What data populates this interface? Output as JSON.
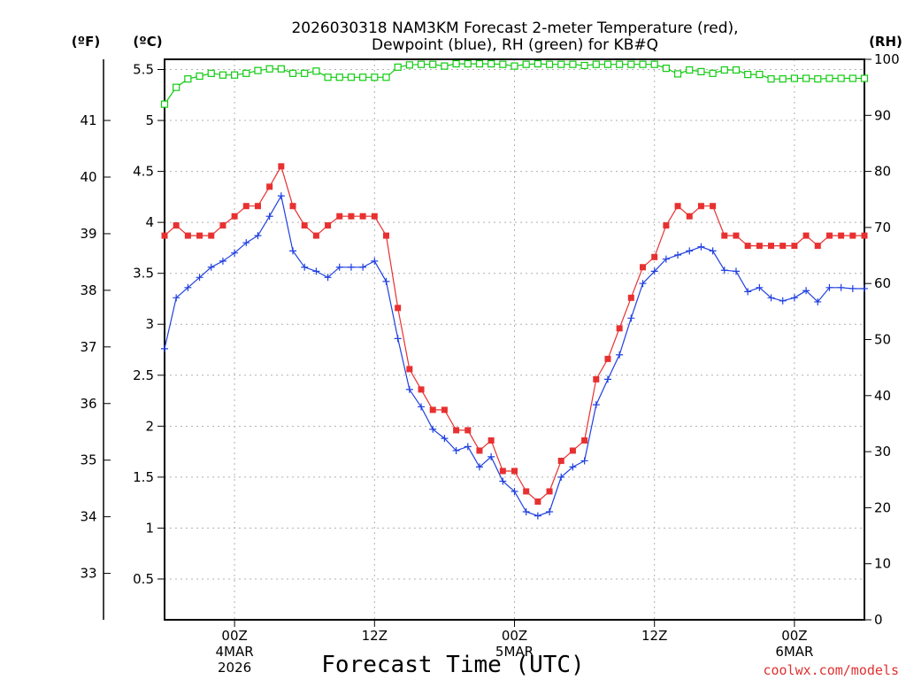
{
  "title_line1": "2026030318 NAM3KM Forecast 2-meter Temperature (red),",
  "title_line2": "Dewpoint (blue), RH (green) for KB#Q",
  "units": {
    "fahrenheit": "(ºF)",
    "celsius": "(ºC)",
    "rh": "(RH)"
  },
  "credit": "coolwx.com/models",
  "colors": {
    "temperature": "#e83030",
    "dewpoint": "#2040e0",
    "rh": "#10cc10",
    "grid": "#b0b0b0",
    "axis": "#000000"
  },
  "chart_data": {
    "type": "line",
    "title": "2026030318 NAM3KM Forecast 2-meter Temperature (red), Dewpoint (blue), RH (green) for KB#Q",
    "xlabel": "Forecast Time (UTC)",
    "x_unit": "forecast hour",
    "xlim": [
      0,
      60
    ],
    "x": [
      0,
      1,
      2,
      3,
      4,
      5,
      6,
      7,
      8,
      9,
      10,
      11,
      12,
      13,
      14,
      15,
      16,
      17,
      18,
      19,
      20,
      21,
      22,
      23,
      24,
      25,
      26,
      27,
      28,
      29,
      30,
      31,
      32,
      33,
      34,
      35,
      36,
      37,
      38,
      39,
      40,
      41,
      42,
      43,
      44,
      45,
      46,
      47,
      48,
      49,
      50,
      51,
      52,
      53,
      54,
      55,
      56,
      57,
      58,
      59,
      60
    ],
    "x_ticks": [
      {
        "x": 6,
        "label": "00Z",
        "date": "4MAR",
        "year": "2026"
      },
      {
        "x": 18,
        "label": "12Z",
        "date": "",
        "year": ""
      },
      {
        "x": 30,
        "label": "00Z",
        "date": "5MAR",
        "year": ""
      },
      {
        "x": 42,
        "label": "12Z",
        "date": "",
        "year": ""
      },
      {
        "x": 54,
        "label": "00Z",
        "date": "6MAR",
        "year": ""
      }
    ],
    "y_celsius": {
      "label": "(ºC)",
      "lim": [
        0.1,
        5.6
      ],
      "ticks": [
        0.5,
        1,
        1.5,
        2,
        2.5,
        3,
        3.5,
        4,
        4.5,
        5,
        5.5
      ]
    },
    "y_fahrenheit": {
      "label": "(ºF)",
      "ticks": [
        33,
        34,
        35,
        36,
        37,
        38,
        39,
        40,
        41
      ]
    },
    "y_rh": {
      "label": "(RH)",
      "lim": [
        0,
        100
      ],
      "ticks": [
        0,
        10,
        20,
        30,
        40,
        50,
        60,
        70,
        80,
        90,
        100
      ]
    },
    "series": [
      {
        "name": "Temperature",
        "unit": "°C",
        "marker": "filled-square",
        "values": [
          3.87,
          3.97,
          3.87,
          3.87,
          3.87,
          3.97,
          4.06,
          4.16,
          4.16,
          4.35,
          4.55,
          4.16,
          3.97,
          3.87,
          3.97,
          4.06,
          4.06,
          4.06,
          4.06,
          3.87,
          3.16,
          2.56,
          2.36,
          2.16,
          2.16,
          1.96,
          1.96,
          1.76,
          1.86,
          1.56,
          1.56,
          1.36,
          1.26,
          1.36,
          1.66,
          1.76,
          1.86,
          2.46,
          2.66,
          2.96,
          3.26,
          3.56,
          3.66,
          3.97,
          4.16,
          4.06,
          4.16,
          4.16,
          3.87,
          3.87,
          3.77,
          3.77,
          3.77,
          3.77,
          3.77,
          3.87,
          3.77,
          3.87,
          3.87,
          3.87,
          3.87
        ]
      },
      {
        "name": "Dewpoint",
        "unit": "°C",
        "marker": "plus",
        "values": [
          2.76,
          3.26,
          3.36,
          3.46,
          3.56,
          3.62,
          3.7,
          3.8,
          3.87,
          4.06,
          4.26,
          3.72,
          3.56,
          3.52,
          3.46,
          3.56,
          3.56,
          3.56,
          3.62,
          3.42,
          2.86,
          2.36,
          2.19,
          1.97,
          1.88,
          1.76,
          1.8,
          1.6,
          1.7,
          1.46,
          1.36,
          1.16,
          1.12,
          1.16,
          1.5,
          1.6,
          1.66,
          2.21,
          2.46,
          2.7,
          3.06,
          3.4,
          3.52,
          3.64,
          3.68,
          3.72,
          3.76,
          3.72,
          3.53,
          3.52,
          3.32,
          3.36,
          3.26,
          3.23,
          3.26,
          3.33,
          3.22,
          3.36,
          3.36,
          3.35,
          3.35
        ]
      },
      {
        "name": "RH",
        "unit": "%",
        "marker": "open-square",
        "values": [
          92,
          95,
          96.5,
          97,
          97.5,
          97.2,
          97.2,
          97.5,
          98,
          98.3,
          98.3,
          97.5,
          97.5,
          97.9,
          96.8,
          96.8,
          96.8,
          96.8,
          96.8,
          96.8,
          98.6,
          99,
          99.1,
          99.1,
          98.8,
          99.2,
          99.2,
          99.2,
          99.2,
          99.1,
          98.8,
          99.1,
          99.2,
          99.1,
          99.1,
          99.1,
          98.9,
          99.1,
          99.1,
          99.1,
          99.1,
          99.1,
          99.1,
          98.4,
          97.4,
          98.1,
          97.8,
          97.5,
          98.1,
          98.1,
          97.3,
          97.3,
          96.5,
          96.5,
          96.6,
          96.6,
          96.5,
          96.6,
          96.6,
          96.6,
          96.6
        ]
      }
    ]
  }
}
